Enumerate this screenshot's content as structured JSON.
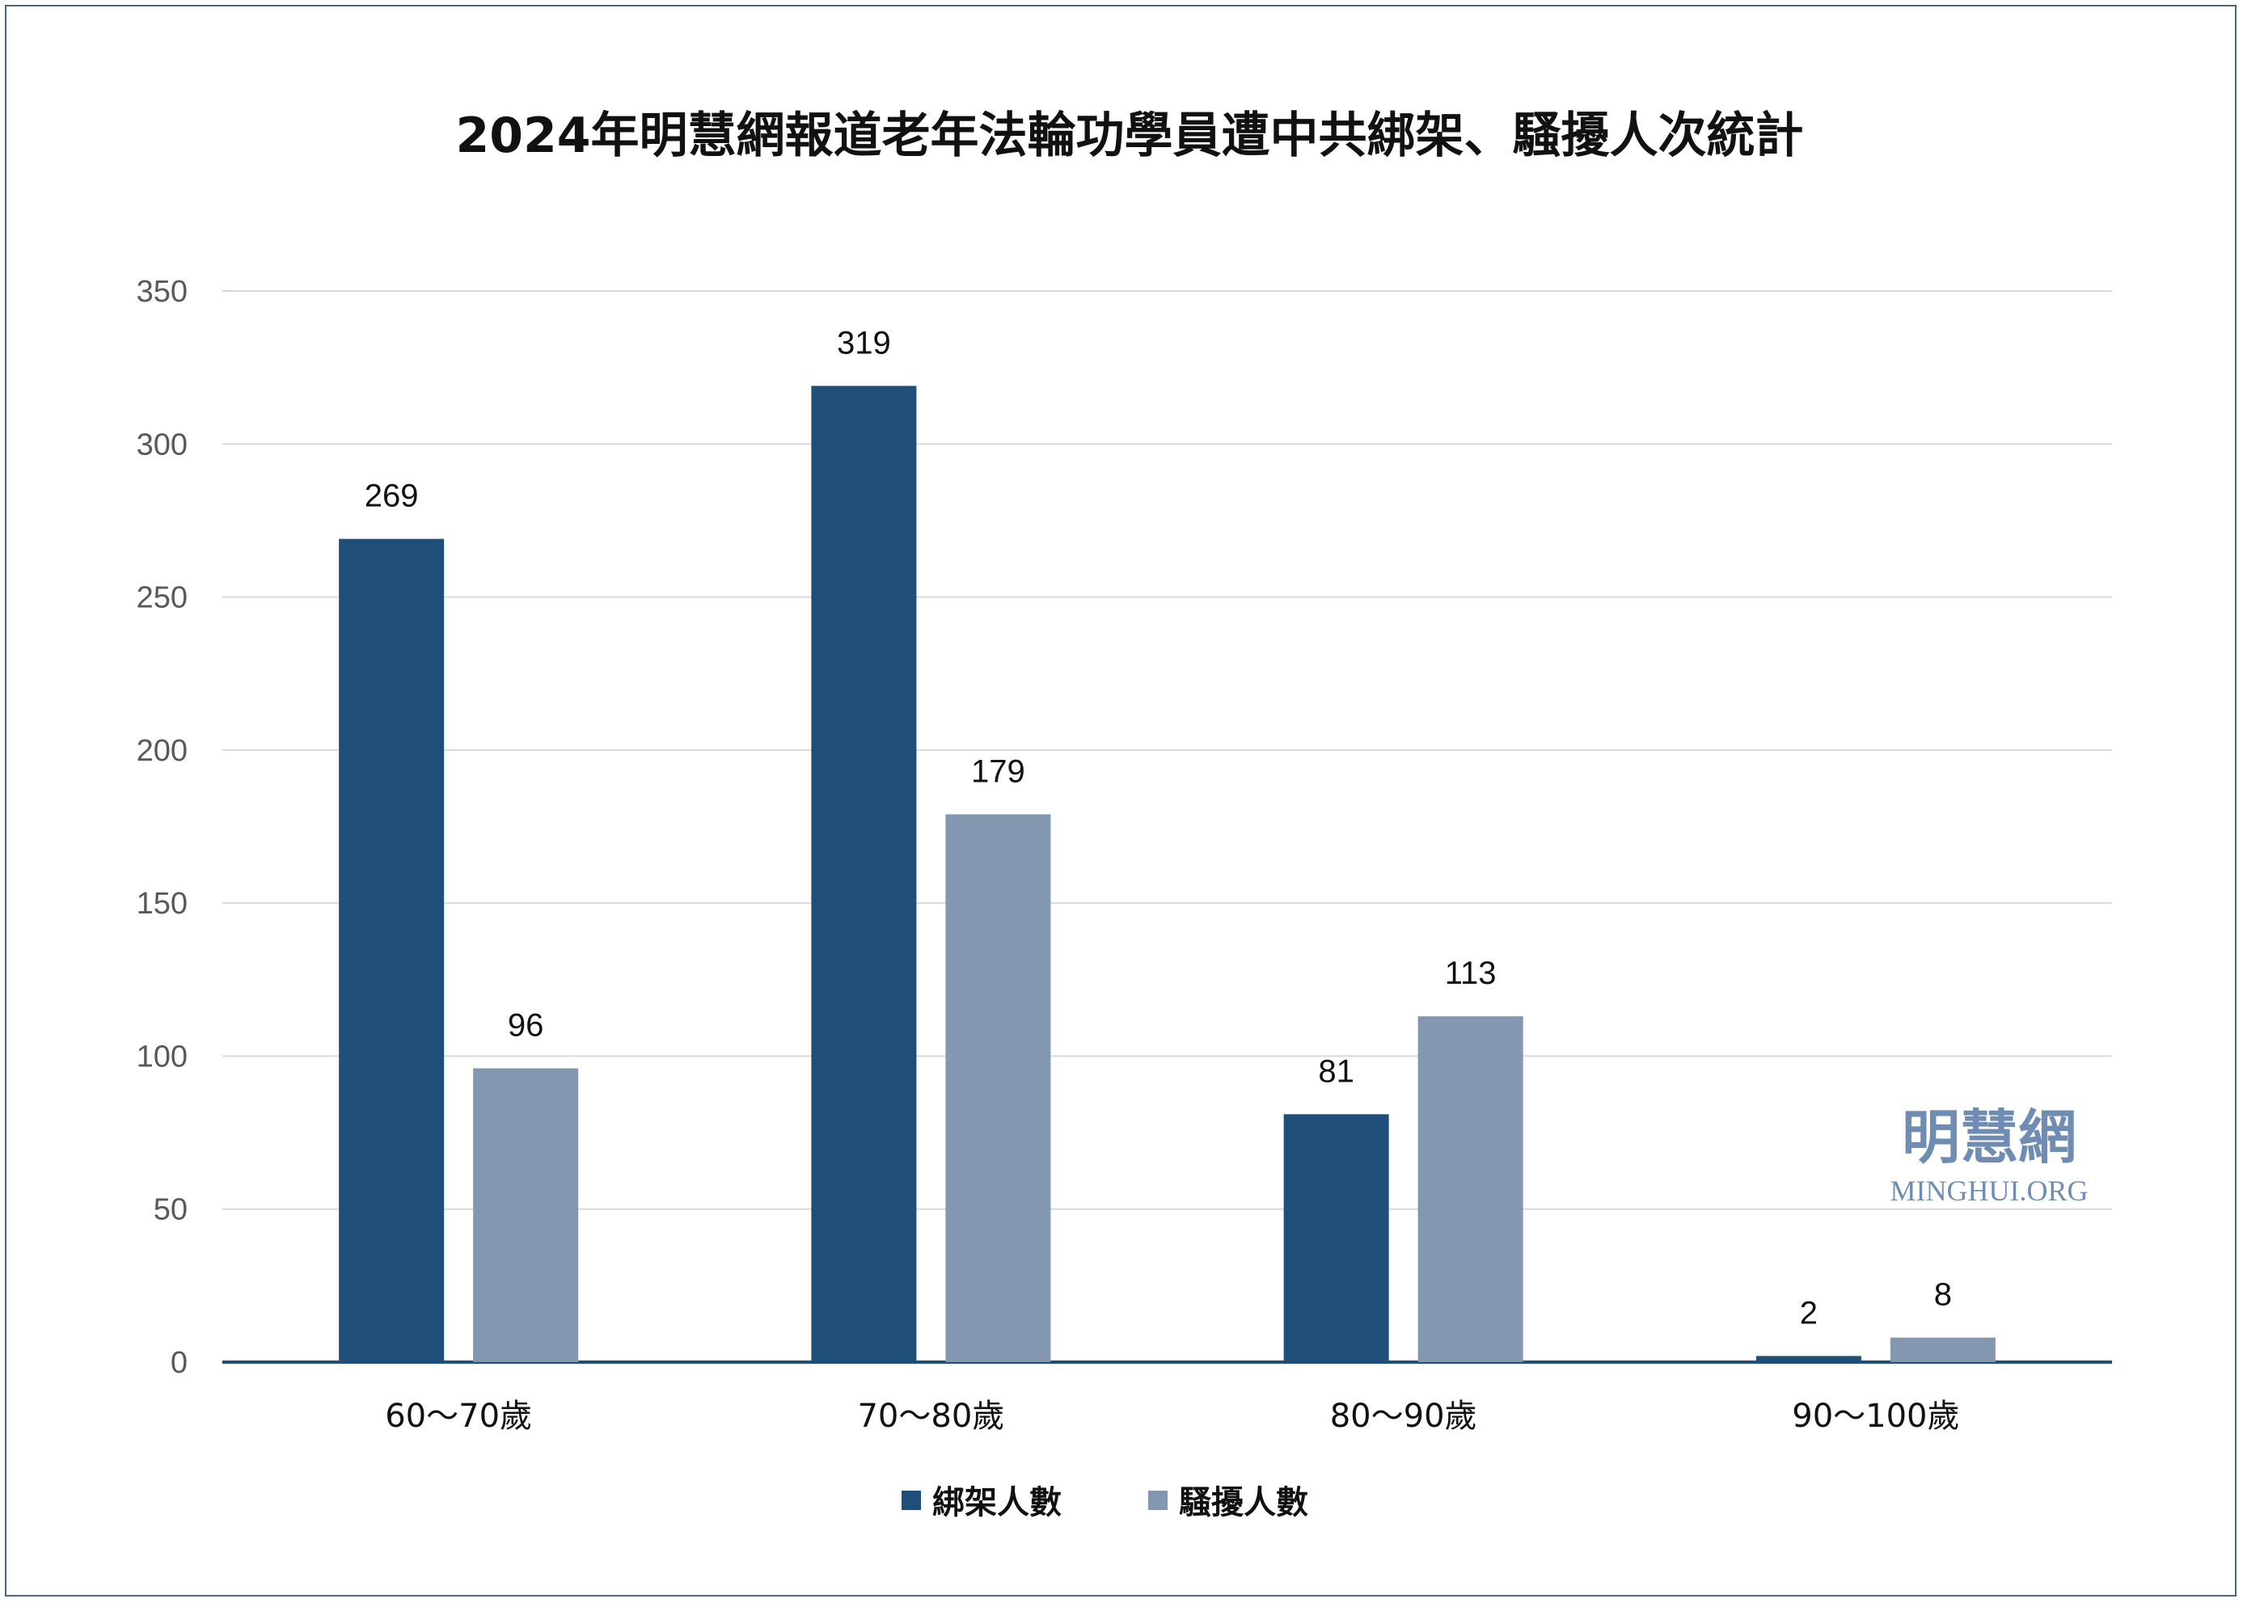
{
  "chart_data": {
    "type": "bar",
    "title": "2024年明慧網報道老年法輪功學員遭中共綁架、騷擾人次統計",
    "categories": [
      "60～70歲",
      "70～80歲",
      "80～90歲",
      "90～100歲"
    ],
    "series": [
      {
        "name": "綁架人數",
        "values": [
          269,
          319,
          81,
          2
        ],
        "color": "#1f4e79"
      },
      {
        "name": "騷擾人數",
        "values": [
          96,
          179,
          113,
          8
        ],
        "color": "#8497b0"
      }
    ],
    "ylim": [
      0,
      350
    ],
    "yticks": [
      0,
      50,
      100,
      150,
      200,
      250,
      300,
      350
    ],
    "grid": true,
    "legend": "bottom",
    "xlabel": "",
    "ylabel": ""
  },
  "watermark": {
    "name": "明慧網",
    "site": "MINGHUI.ORG"
  },
  "colors": {
    "frame": "#4a6682",
    "grid": "#d9d9d9",
    "axis": "#1f4e79",
    "watermark": "#6f8db3"
  }
}
